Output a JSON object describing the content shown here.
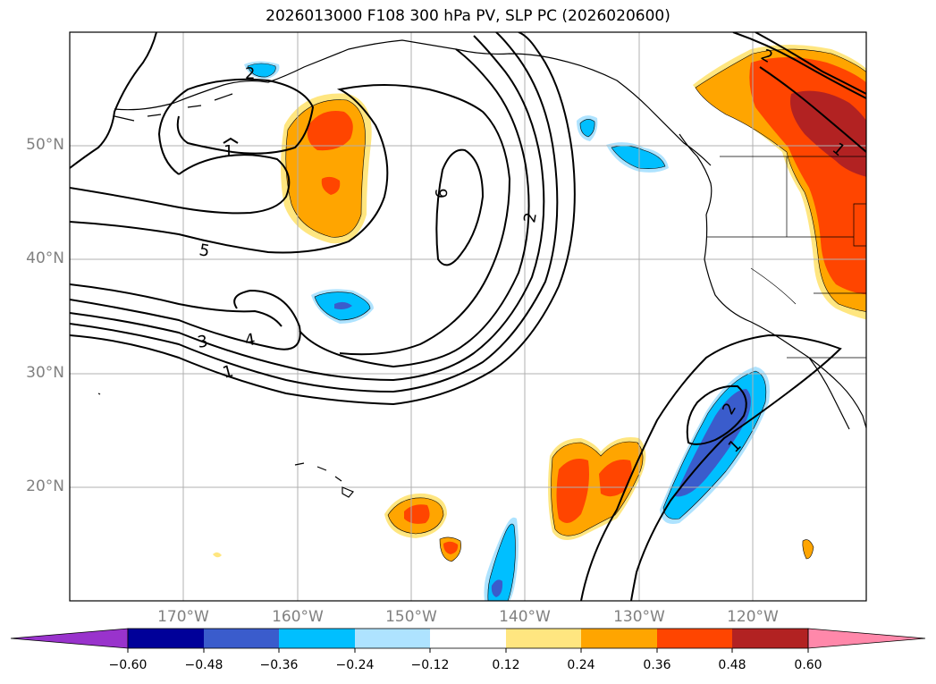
{
  "title": "2026013000 F108 300 hPa PV, SLP PC (2026020600)",
  "map": {
    "lon_range": [
      -180,
      -110
    ],
    "lat_range": [
      10,
      60
    ],
    "lat_ticks": [
      {
        "value": 20,
        "label": "20°N"
      },
      {
        "value": 30,
        "label": "30°N"
      },
      {
        "value": 40,
        "label": "40°N"
      },
      {
        "value": 50,
        "label": "50°N"
      }
    ],
    "lon_ticks": [
      {
        "value": -170,
        "label": "170°W"
      },
      {
        "value": -160,
        "label": "160°W"
      },
      {
        "value": -150,
        "label": "150°W"
      },
      {
        "value": -140,
        "label": "140°W"
      },
      {
        "value": -130,
        "label": "130°W"
      },
      {
        "value": -120,
        "label": "120°W"
      }
    ],
    "grid": true,
    "contour_labels": [
      "1",
      "2",
      "3",
      "4",
      "5",
      "6"
    ]
  },
  "colorbar": {
    "ticks": [
      "−0.60",
      "−0.48",
      "−0.36",
      "−0.24",
      "−0.12",
      "0.12",
      "0.24",
      "0.36",
      "0.48",
      "0.60"
    ],
    "colors": [
      "#9933cc",
      "#000099",
      "#3a5ccc",
      "#00bfff",
      "#aee3ff",
      "#ffffff",
      "#ffe680",
      "#ffa500",
      "#ff4500",
      "#b22222",
      "#ff88aa"
    ]
  }
}
